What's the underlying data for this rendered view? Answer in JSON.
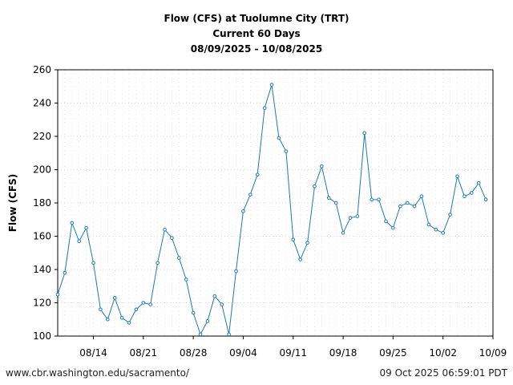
{
  "chart_data": {
    "type": "line",
    "title": "Flow (CFS) at Tuolumne City (TRT)",
    "subtitle": "Current 60 Days",
    "date_range": "08/09/2025 - 10/08/2025",
    "ylabel": "Flow (CFS)",
    "xlabel": "",
    "ylim": [
      100,
      260
    ],
    "yticks": [
      100,
      120,
      140,
      160,
      180,
      200,
      220,
      240,
      260
    ],
    "xlim": [
      "2025-08-09",
      "2025-10-09"
    ],
    "xticks": [
      {
        "date": "2025-08-14",
        "label": "08/14"
      },
      {
        "date": "2025-08-21",
        "label": "08/21"
      },
      {
        "date": "2025-08-28",
        "label": "08/28"
      },
      {
        "date": "2025-09-04",
        "label": "09/04"
      },
      {
        "date": "2025-09-11",
        "label": "09/11"
      },
      {
        "date": "2025-09-18",
        "label": "09/18"
      },
      {
        "date": "2025-09-25",
        "label": "09/25"
      },
      {
        "date": "2025-10-02",
        "label": "10/02"
      },
      {
        "date": "2025-10-09",
        "label": "10/09"
      }
    ],
    "grid": true,
    "series": [
      {
        "color": "#1f77b4",
        "x": [
          "2025-08-09",
          "2025-08-10",
          "2025-08-11",
          "2025-08-12",
          "2025-08-13",
          "2025-08-14",
          "2025-08-15",
          "2025-08-16",
          "2025-08-17",
          "2025-08-18",
          "2025-08-19",
          "2025-08-20",
          "2025-08-21",
          "2025-08-22",
          "2025-08-23",
          "2025-08-24",
          "2025-08-25",
          "2025-08-26",
          "2025-08-27",
          "2025-08-28",
          "2025-08-29",
          "2025-08-30",
          "2025-08-31",
          "2025-09-01",
          "2025-09-02",
          "2025-09-03",
          "2025-09-04",
          "2025-09-05",
          "2025-09-06",
          "2025-09-07",
          "2025-09-08",
          "2025-09-09",
          "2025-09-10",
          "2025-09-11",
          "2025-09-12",
          "2025-09-13",
          "2025-09-14",
          "2025-09-15",
          "2025-09-16",
          "2025-09-17",
          "2025-09-18",
          "2025-09-19",
          "2025-09-20",
          "2025-09-21",
          "2025-09-22",
          "2025-09-23",
          "2025-09-24",
          "2025-09-25",
          "2025-09-26",
          "2025-09-27",
          "2025-09-28",
          "2025-09-29",
          "2025-09-30",
          "2025-10-01",
          "2025-10-02",
          "2025-10-03",
          "2025-10-04",
          "2025-10-05",
          "2025-10-06",
          "2025-10-07",
          "2025-10-08"
        ],
        "values": [
          125,
          138,
          168,
          157,
          165,
          144,
          116,
          110,
          123,
          111,
          108,
          116,
          120,
          119,
          144,
          164,
          159,
          147,
          134,
          114,
          101,
          109,
          124,
          119,
          101,
          139,
          175,
          185,
          197,
          237,
          251,
          219,
          211,
          158,
          146,
          156,
          190,
          202,
          183,
          180,
          162,
          171,
          172,
          222,
          182,
          182,
          169,
          165,
          178,
          180,
          178,
          184,
          167,
          164,
          162,
          173,
          196,
          184,
          186,
          192,
          182
        ]
      }
    ]
  },
  "footer": {
    "source": "www.cbr.washington.edu/sacramento/",
    "timestamp": "09 Oct 2025 06:59:01 PDT"
  }
}
